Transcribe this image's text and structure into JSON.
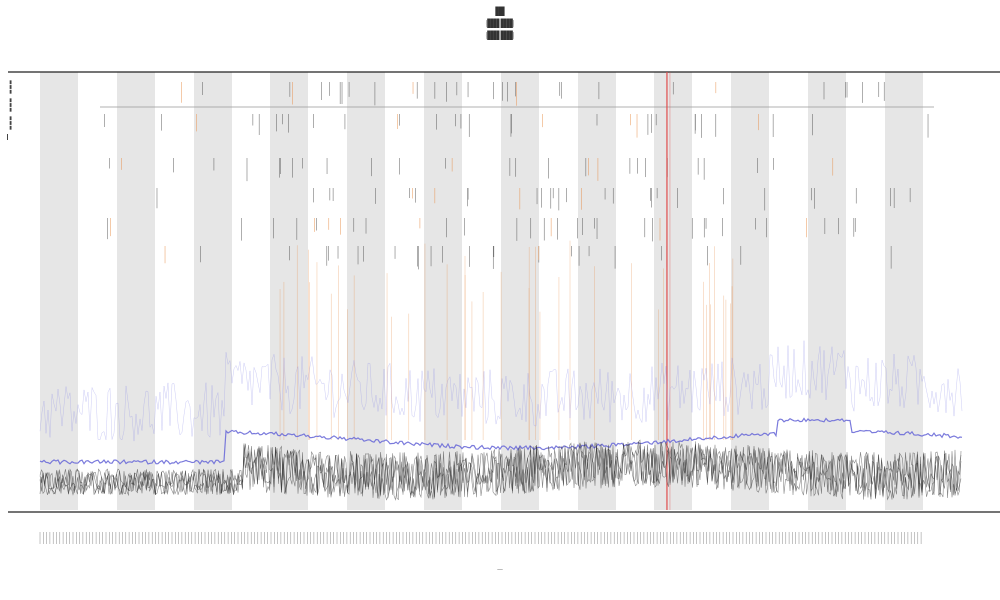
{
  "chart_data": {
    "type": "line",
    "title_lines": [
      "███",
      "(████ ████)",
      "(████ ████)"
    ],
    "xlabel": "—",
    "ylabel": "",
    "grid": false,
    "legend_placement": "left",
    "legend": [
      {
        "name": "▬▬▬",
        "color": "#222222"
      },
      {
        "name": "▬▬▬",
        "color": "#a8a8e8"
      },
      {
        "name": "▬▬▬",
        "color": "#d8cc70"
      }
    ],
    "series": [
      {
        "color": "#3a3a3a",
        "role": "lower band",
        "level": [
          0.0,
          1.0
        ],
        "values_note": "dense noisy trace"
      },
      {
        "color": "#8080e0",
        "role": "upper band",
        "level": [
          0.0,
          1.0
        ],
        "values_note": "dense noisy trace"
      }
    ],
    "shaded_spans": 12,
    "highlight": {
      "color": "#e05a3c",
      "position": 0.68
    }
  },
  "colors": {
    "axis": "#222222",
    "shade": "#e6e6e6",
    "band_dark": "#2a2a2a",
    "band_blue": "#8d8de8",
    "tick_orange": "#e8904c",
    "tick_red": "#e04c4c"
  }
}
